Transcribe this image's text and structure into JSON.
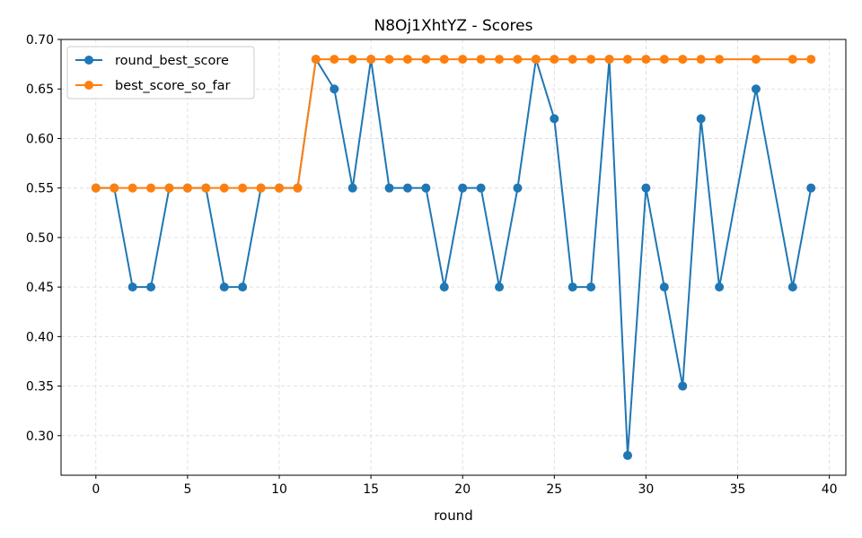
{
  "chart_data": {
    "type": "line",
    "title": "N8Oj1XhtYZ - Scores",
    "xlabel": "round",
    "ylabel": "",
    "xlim": [
      -1.9,
      40.9
    ],
    "ylim": [
      0.26,
      0.7
    ],
    "xticks": [
      0,
      5,
      10,
      15,
      20,
      25,
      30,
      35,
      40
    ],
    "yticks": [
      0.3,
      0.35,
      0.4,
      0.45,
      0.5,
      0.55,
      0.6,
      0.65,
      0.7
    ],
    "grid": true,
    "legend_position": "upper-left",
    "series": [
      {
        "name": "round_best_score",
        "color": "#1f77b4",
        "points": [
          [
            0,
            0.55
          ],
          [
            1,
            0.55
          ],
          [
            2,
            0.45
          ],
          [
            3,
            0.45
          ],
          [
            4,
            0.55
          ],
          [
            5,
            0.55
          ],
          [
            6,
            0.55
          ],
          [
            7,
            0.45
          ],
          [
            8,
            0.45
          ],
          [
            9,
            0.55
          ],
          [
            10,
            0.55
          ],
          [
            11,
            0.55
          ],
          [
            12,
            0.68
          ],
          [
            13,
            0.65
          ],
          [
            14,
            0.55
          ],
          [
            15,
            0.68
          ],
          [
            16,
            0.55
          ],
          [
            17,
            0.55
          ],
          [
            18,
            0.55
          ],
          [
            19,
            0.45
          ],
          [
            20,
            0.55
          ],
          [
            21,
            0.55
          ],
          [
            22,
            0.45
          ],
          [
            23,
            0.55
          ],
          [
            24,
            0.68
          ],
          [
            25,
            0.62
          ],
          [
            26,
            0.45
          ],
          [
            27,
            0.45
          ],
          [
            28,
            0.68
          ],
          [
            29,
            0.28
          ],
          [
            30,
            0.55
          ],
          [
            31,
            0.45
          ],
          [
            32,
            0.35
          ],
          [
            33,
            0.62
          ],
          [
            34,
            0.45
          ],
          [
            36,
            0.65
          ],
          [
            38,
            0.45
          ],
          [
            39,
            0.55
          ]
        ]
      },
      {
        "name": "best_score_so_far",
        "color": "#ff7f0e",
        "points": [
          [
            0,
            0.55
          ],
          [
            1,
            0.55
          ],
          [
            2,
            0.55
          ],
          [
            3,
            0.55
          ],
          [
            4,
            0.55
          ],
          [
            5,
            0.55
          ],
          [
            6,
            0.55
          ],
          [
            7,
            0.55
          ],
          [
            8,
            0.55
          ],
          [
            9,
            0.55
          ],
          [
            10,
            0.55
          ],
          [
            11,
            0.55
          ],
          [
            12,
            0.68
          ],
          [
            13,
            0.68
          ],
          [
            14,
            0.68
          ],
          [
            15,
            0.68
          ],
          [
            16,
            0.68
          ],
          [
            17,
            0.68
          ],
          [
            18,
            0.68
          ],
          [
            19,
            0.68
          ],
          [
            20,
            0.68
          ],
          [
            21,
            0.68
          ],
          [
            22,
            0.68
          ],
          [
            23,
            0.68
          ],
          [
            24,
            0.68
          ],
          [
            25,
            0.68
          ],
          [
            26,
            0.68
          ],
          [
            27,
            0.68
          ],
          [
            28,
            0.68
          ],
          [
            29,
            0.68
          ],
          [
            30,
            0.68
          ],
          [
            31,
            0.68
          ],
          [
            32,
            0.68
          ],
          [
            33,
            0.68
          ],
          [
            34,
            0.68
          ],
          [
            36,
            0.68
          ],
          [
            38,
            0.68
          ],
          [
            39,
            0.68
          ]
        ]
      }
    ]
  }
}
